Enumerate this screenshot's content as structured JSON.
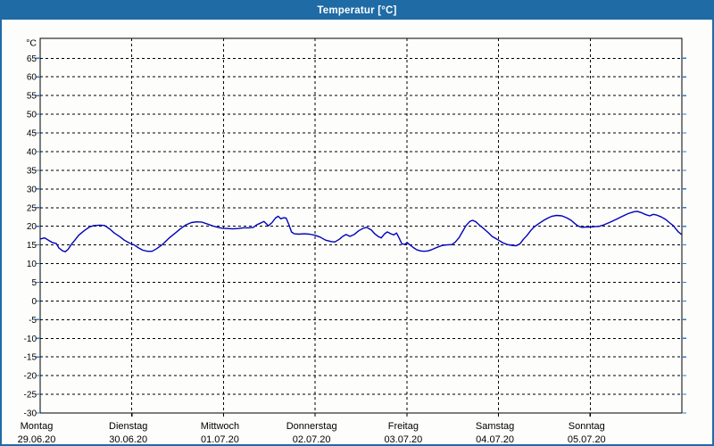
{
  "window": {
    "title": "Temperatur [°C]",
    "titlebar_color": "#1e6ba6",
    "border_color": "#1e6ba6",
    "background": "#fdfdfc"
  },
  "chart_data": {
    "type": "line",
    "title": "Temperatur [°C]",
    "y_unit_label": "°C",
    "ylabel": "",
    "xlabel": "",
    "ylim": [
      -30,
      65
    ],
    "y_tick_step": 5,
    "y_ticks": [
      65,
      60,
      55,
      50,
      45,
      40,
      35,
      30,
      25,
      20,
      15,
      10,
      5,
      0,
      -5,
      -10,
      -15,
      -20,
      -25,
      -30
    ],
    "grid": "dashed",
    "legend_position": "none",
    "x_range_hours": [
      0,
      168
    ],
    "x_days": [
      {
        "name": "Montag",
        "date": "29.06.20"
      },
      {
        "name": "Dienstag",
        "date": "30.06.20"
      },
      {
        "name": "Mittwoch",
        "date": "01.07.20"
      },
      {
        "name": "Donnerstag",
        "date": "02.07.20"
      },
      {
        "name": "Freitag",
        "date": "03.07.20"
      },
      {
        "name": "Samstag",
        "date": "04.07.20"
      },
      {
        "name": "Sonntag",
        "date": "05.07.20"
      }
    ],
    "series": [
      {
        "name": "Temperatur",
        "color": "#0000bb",
        "points": [
          [
            0,
            16.6
          ],
          [
            1.2,
            16.9
          ],
          [
            2.3,
            16.2
          ],
          [
            3.3,
            15.6
          ],
          [
            4.2,
            15.4
          ],
          [
            4.9,
            14.2
          ],
          [
            5.9,
            13.4
          ],
          [
            6.6,
            13.2
          ],
          [
            7.3,
            13.8
          ],
          [
            8.2,
            15.2
          ],
          [
            9.1,
            16.3
          ],
          [
            10.1,
            17.6
          ],
          [
            11.5,
            18.8
          ],
          [
            12.9,
            19.8
          ],
          [
            14.1,
            20.2
          ],
          [
            15.7,
            20.3
          ],
          [
            16.9,
            20.2
          ],
          [
            18.3,
            19.2
          ],
          [
            19.4,
            18.2
          ],
          [
            20.9,
            17.2
          ],
          [
            22,
            16.3
          ],
          [
            23.4,
            15.5
          ],
          [
            24.6,
            15
          ],
          [
            25.8,
            14.2
          ],
          [
            26.9,
            13.6
          ],
          [
            28.1,
            13.3
          ],
          [
            29.3,
            13.3
          ],
          [
            30.5,
            14
          ],
          [
            32.1,
            15.2
          ],
          [
            33.7,
            16.8
          ],
          [
            35.4,
            18.2
          ],
          [
            36.8,
            19.4
          ],
          [
            38.2,
            20.4
          ],
          [
            39.6,
            21
          ],
          [
            41,
            21.2
          ],
          [
            42.4,
            21.1
          ],
          [
            43.8,
            20.6
          ],
          [
            45.2,
            20.1
          ],
          [
            46.6,
            19.7
          ],
          [
            47.6,
            19.5
          ],
          [
            49,
            19.4
          ],
          [
            50.4,
            19.3
          ],
          [
            51.8,
            19.4
          ],
          [
            53.2,
            19.6
          ],
          [
            54.6,
            19.6
          ],
          [
            55.8,
            19.7
          ],
          [
            56.7,
            20.4
          ],
          [
            57.6,
            20.8
          ],
          [
            58.6,
            21.3
          ],
          [
            59.3,
            20.6
          ],
          [
            59.7,
            20.1
          ],
          [
            60.7,
            21
          ],
          [
            61.6,
            22.2
          ],
          [
            62.3,
            22.7
          ],
          [
            63,
            22
          ],
          [
            63.7,
            22.3
          ],
          [
            64.4,
            22.2
          ],
          [
            65.1,
            20.5
          ],
          [
            65.8,
            18.5
          ],
          [
            66.5,
            18
          ],
          [
            67.7,
            17.9
          ],
          [
            69.1,
            18
          ],
          [
            70.5,
            17.9
          ],
          [
            71.9,
            17.6
          ],
          [
            73.3,
            17.1
          ],
          [
            74.7,
            16.3
          ],
          [
            76.2,
            15.9
          ],
          [
            77.1,
            15.8
          ],
          [
            78.3,
            16.5
          ],
          [
            79.2,
            17.3
          ],
          [
            80.1,
            17.8
          ],
          [
            81.1,
            17.3
          ],
          [
            82.2,
            17.8
          ],
          [
            83.4,
            18.8
          ],
          [
            84.6,
            19.5
          ],
          [
            85.5,
            19.7
          ],
          [
            86.7,
            19
          ],
          [
            87.6,
            18
          ],
          [
            88.6,
            17.2
          ],
          [
            89.3,
            16.9
          ],
          [
            90.2,
            18
          ],
          [
            90.9,
            18.5
          ],
          [
            91.8,
            18
          ],
          [
            92.6,
            17.7
          ],
          [
            93.3,
            18.2
          ],
          [
            94,
            16.8
          ],
          [
            94.7,
            15.3
          ],
          [
            95.4,
            15.2
          ],
          [
            96.1,
            15.6
          ],
          [
            96.8,
            15
          ],
          [
            97.7,
            14.3
          ],
          [
            98.6,
            13.7
          ],
          [
            99.6,
            13.4
          ],
          [
            100.5,
            13.3
          ],
          [
            101.5,
            13.4
          ],
          [
            102.4,
            13.7
          ],
          [
            103.3,
            14.1
          ],
          [
            104.5,
            14.6
          ],
          [
            105.4,
            14.9
          ],
          [
            106.4,
            15
          ],
          [
            107.8,
            15.1
          ],
          [
            108.7,
            15.8
          ],
          [
            109.7,
            17
          ],
          [
            110.6,
            18.6
          ],
          [
            111.5,
            20.2
          ],
          [
            112.5,
            21.3
          ],
          [
            113.2,
            21.6
          ],
          [
            114.1,
            21.2
          ],
          [
            115,
            20.3
          ],
          [
            116.2,
            19.3
          ],
          [
            117.2,
            18.4
          ],
          [
            118.3,
            17.3
          ],
          [
            119.3,
            16.7
          ],
          [
            120,
            16.3
          ],
          [
            121.1,
            15.6
          ],
          [
            122.3,
            15.1
          ],
          [
            123.5,
            14.9
          ],
          [
            124.6,
            14.8
          ],
          [
            125.6,
            15.3
          ],
          [
            126.5,
            16.5
          ],
          [
            127.5,
            17.6
          ],
          [
            128.4,
            18.8
          ],
          [
            129.3,
            19.8
          ],
          [
            130.5,
            20.7
          ],
          [
            131.7,
            21.5
          ],
          [
            132.9,
            22.2
          ],
          [
            134,
            22.7
          ],
          [
            135.2,
            22.9
          ],
          [
            136.6,
            22.8
          ],
          [
            137.8,
            22.3
          ],
          [
            139,
            21.6
          ],
          [
            139.9,
            20.8
          ],
          [
            140.8,
            20.1
          ],
          [
            141.8,
            19.7
          ],
          [
            142.7,
            19.8
          ],
          [
            144.1,
            19.8
          ],
          [
            145.3,
            19.9
          ],
          [
            146.4,
            20
          ],
          [
            147.6,
            20.4
          ],
          [
            149,
            21
          ],
          [
            150.7,
            21.8
          ],
          [
            152.3,
            22.6
          ],
          [
            153.9,
            23.4
          ],
          [
            155.4,
            23.9
          ],
          [
            156.3,
            24
          ],
          [
            157.5,
            23.6
          ],
          [
            158.6,
            23.1
          ],
          [
            159.6,
            22.8
          ],
          [
            160.5,
            23.2
          ],
          [
            161.4,
            23
          ],
          [
            162.6,
            22.5
          ],
          [
            163.8,
            21.8
          ],
          [
            164.7,
            21
          ],
          [
            165.7,
            20.2
          ],
          [
            166.4,
            19.3
          ],
          [
            167.1,
            18.5
          ],
          [
            167.8,
            17.9
          ]
        ]
      }
    ],
    "colors": {
      "grid": "#000000",
      "plot_border": "#000000",
      "side_ticks": "#2e7bc4",
      "bottom_ticks": "#000000",
      "text": "#000000"
    }
  }
}
